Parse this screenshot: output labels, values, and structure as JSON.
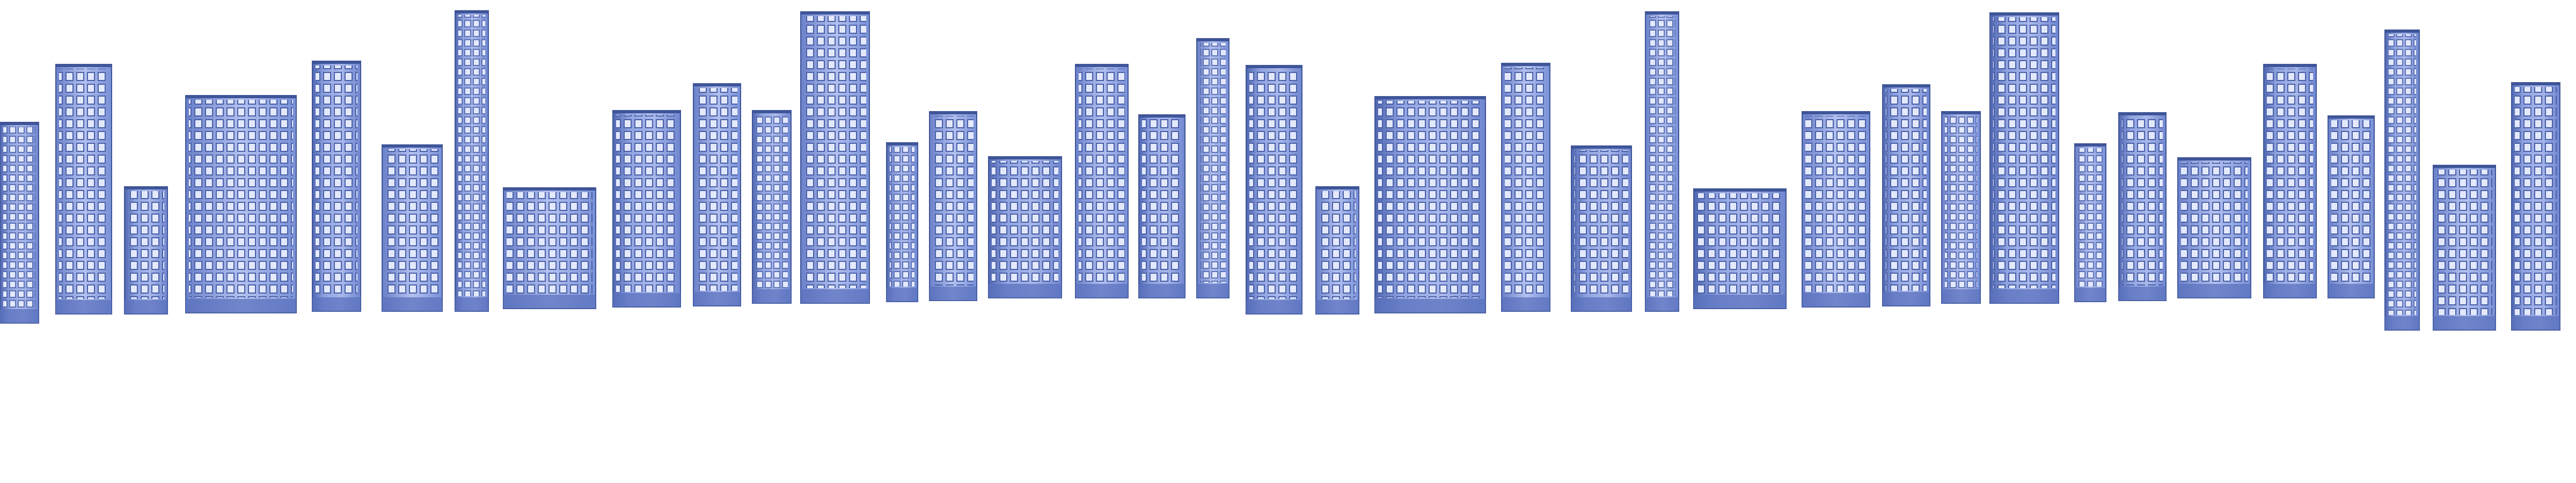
{
  "scene": {
    "description_visible_text": "",
    "palette": {
      "background": "#ffffff",
      "facade_light": "#a9b8ea",
      "facade_mid": "#7f95d8",
      "facade_dark": "#4f66b0",
      "window_fill": "#dfe6fb",
      "window_frame": "#5a6fb8",
      "roof_edge": "#3f5599"
    },
    "building_count": 36
  }
}
